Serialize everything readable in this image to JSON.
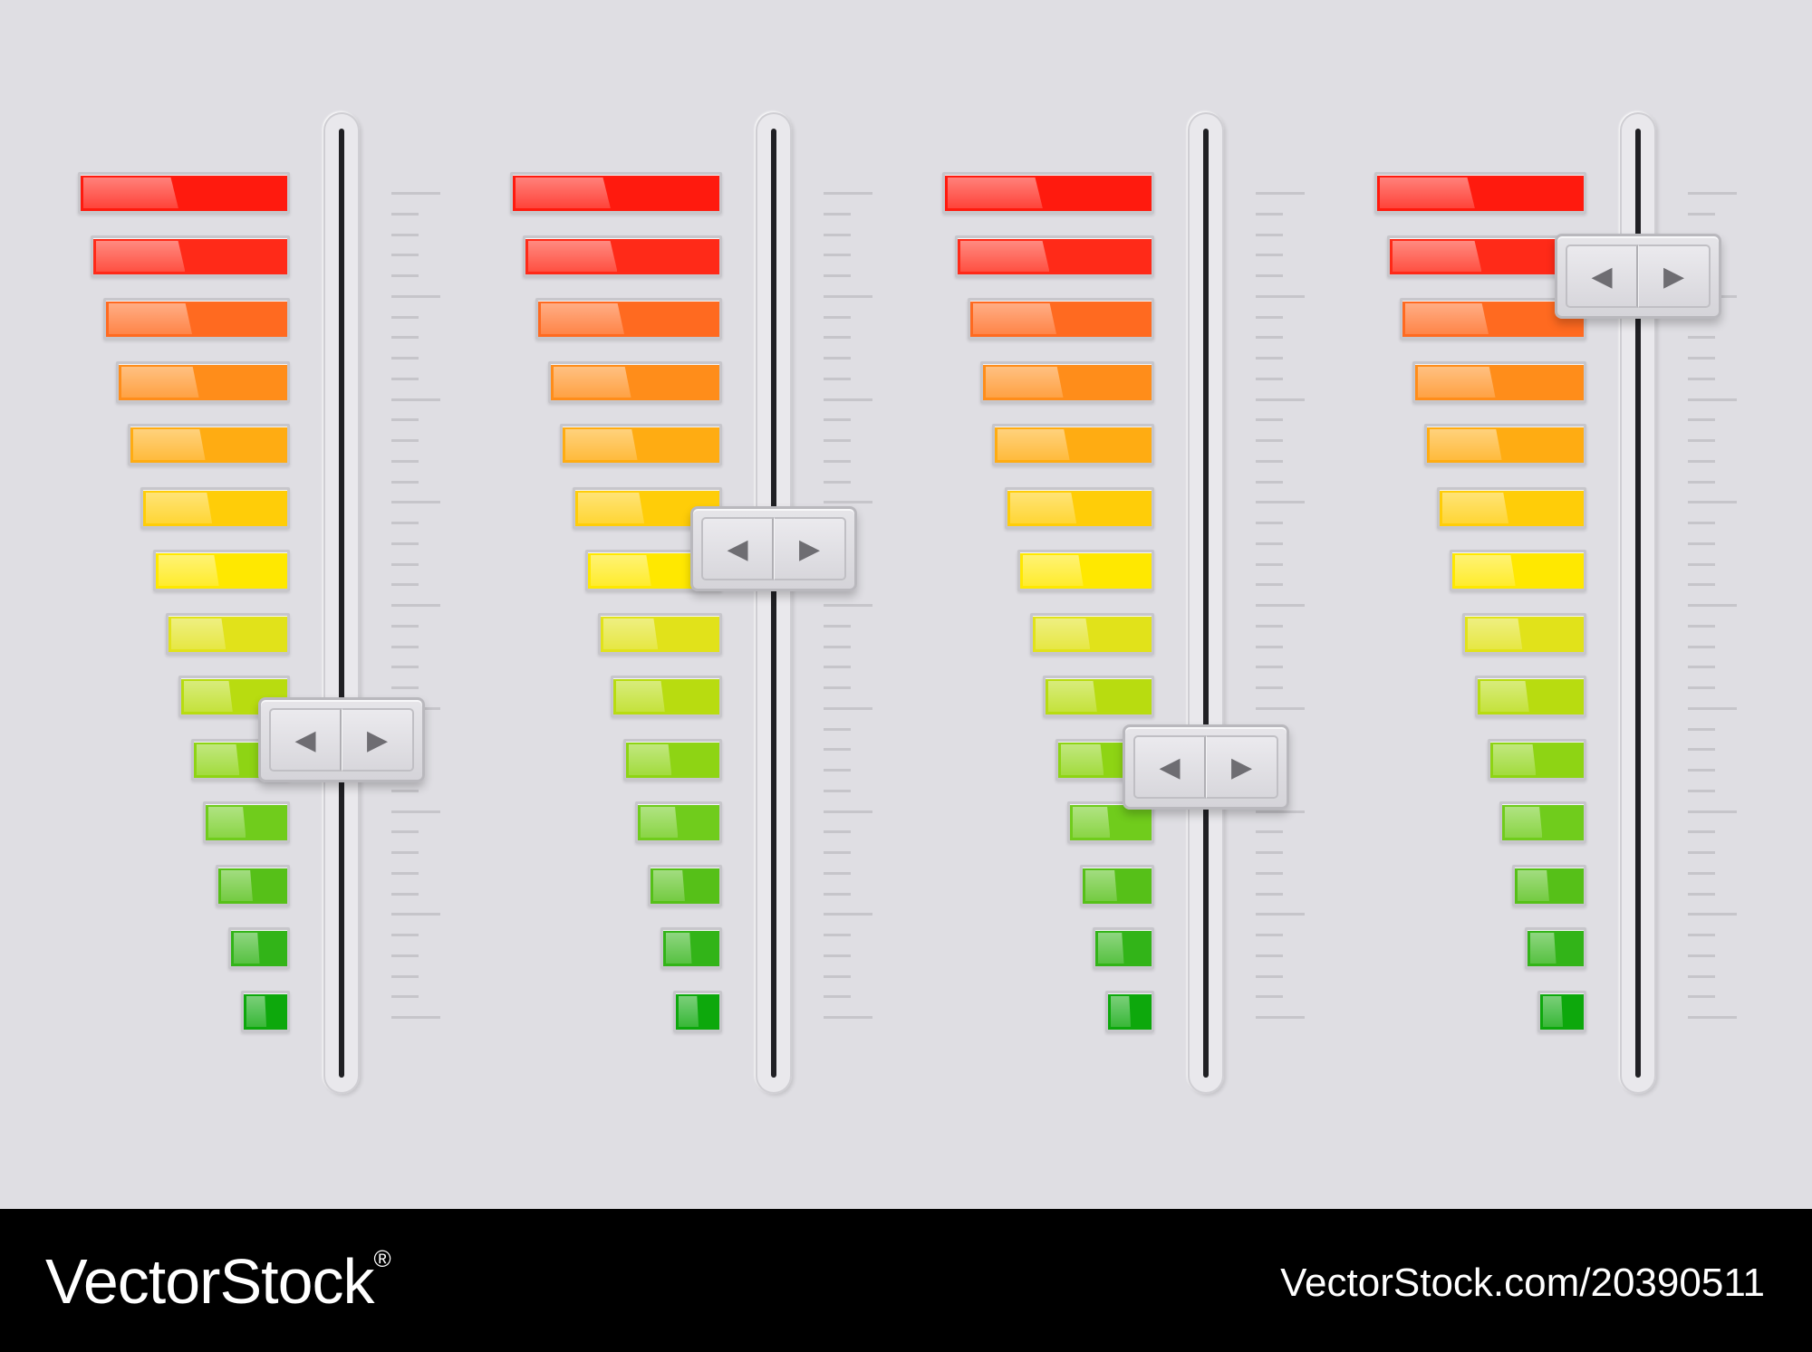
{
  "colors": {
    "background": "#dfdee3",
    "segments": [
      "#ff1a0e",
      "#ff2a18",
      "#ff6a20",
      "#ff8d1a",
      "#ffac12",
      "#ffcd08",
      "#ffe800",
      "#e1e21a",
      "#b8dc10",
      "#8ed414",
      "#70cc1c",
      "#56c018",
      "#32b418",
      "#0da80c"
    ]
  },
  "sliders": [
    {
      "id": "slider-1",
      "value": 0.65,
      "left_label": "◀",
      "right_label": "▶"
    },
    {
      "id": "slider-2",
      "value": 0.44,
      "left_label": "◀",
      "right_label": "▶"
    },
    {
      "id": "slider-3",
      "value": 0.68,
      "left_label": "◀",
      "right_label": "▶"
    },
    {
      "id": "slider-4",
      "value": 0.14,
      "left_label": "◀",
      "right_label": "▶"
    }
  ],
  "segment_count": 14,
  "icons": {
    "left": "triangle-left-icon",
    "right": "triangle-right-icon"
  },
  "footer": {
    "brand": "VectorStock",
    "registered": "®",
    "image_id": "VectorStock.com/20390511"
  }
}
